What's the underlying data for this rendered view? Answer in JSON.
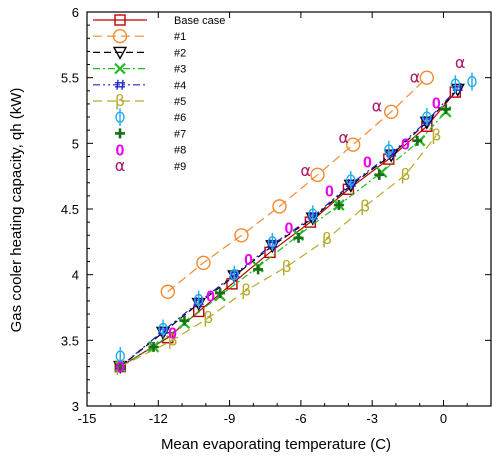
{
  "chart_data": {
    "type": "line",
    "title": "",
    "xlabel": "Mean evaporating temperature (C)",
    "ylabel": "Gas cooler heating capacity, qh (kW)",
    "xlim": [
      -15,
      2
    ],
    "ylim": [
      3,
      6
    ],
    "xticks": [
      -15,
      -12,
      -9,
      -6,
      -3,
      0
    ],
    "yticks": [
      3,
      3.5,
      4,
      4.5,
      5,
      5.5,
      6
    ],
    "xtick_labels": [
      "-15",
      "-12",
      "-9",
      "-6",
      "-3",
      "0"
    ],
    "ytick_labels": [
      "3",
      "3.5",
      "4",
      "4.5",
      "5",
      "5.5",
      "6"
    ],
    "grid": false,
    "legend_position": "top-left",
    "series": [
      {
        "name": "Base case",
        "color": "#c00000",
        "marker": "square",
        "dash": "solid",
        "x": [
          -13.6,
          -11.6,
          -10.3,
          -8.9,
          -7.3,
          -5.6,
          -4.0,
          -2.3,
          -0.7,
          0.5
        ],
        "y": [
          3.3,
          3.52,
          3.72,
          3.93,
          4.17,
          4.4,
          4.65,
          4.88,
          5.13,
          5.39
        ]
      },
      {
        "name": "#1",
        "color": "#f28a30",
        "marker": "circle",
        "dash": "long-dash",
        "x": [
          -11.6,
          -10.1,
          -8.5,
          -6.9,
          -5.3,
          -3.8,
          -2.2,
          -0.7
        ],
        "y": [
          3.87,
          4.09,
          4.3,
          4.52,
          4.76,
          4.99,
          5.24,
          5.5
        ]
      },
      {
        "name": "#2",
        "color": "#000000",
        "marker": "triangle-down",
        "dash": "dash",
        "x": [
          -13.6,
          -11.8,
          -10.3,
          -8.8,
          -7.2,
          -5.5,
          -3.9,
          -2.2,
          -0.7,
          0.6
        ],
        "y": [
          3.3,
          3.56,
          3.78,
          3.99,
          4.22,
          4.43,
          4.68,
          4.91,
          5.16,
          5.41
        ]
      },
      {
        "name": "#3",
        "color": "#22bb22",
        "marker": "x",
        "dash": "dash-dot",
        "x": [
          -13.6,
          -12.2,
          -10.9,
          -9.4,
          -7.8,
          -6.1,
          -4.4,
          -2.6,
          -1.0,
          0.1
        ],
        "y": [
          3.3,
          3.45,
          3.63,
          3.84,
          4.06,
          4.3,
          4.53,
          4.78,
          5.02,
          5.24
        ]
      },
      {
        "name": "#4",
        "color": "#2222cc",
        "marker": "hash",
        "dash": "dash-dot-dot",
        "x": [
          -13.6,
          -11.8,
          -10.3,
          -8.8,
          -7.2,
          -5.5,
          -3.9,
          -2.2,
          -0.7,
          0.6
        ],
        "y": [
          3.3,
          3.57,
          3.79,
          4.0,
          4.23,
          4.44,
          4.69,
          4.92,
          5.17,
          5.42
        ]
      },
      {
        "name": "#5",
        "color": "#b5aa2a",
        "marker": "beta",
        "dash": "long-dash",
        "x": [
          -13.6,
          -11.4,
          -9.9,
          -8.3,
          -6.6,
          -4.9,
          -3.3,
          -1.6,
          -0.3
        ],
        "y": [
          3.3,
          3.5,
          3.67,
          3.88,
          4.06,
          4.27,
          4.52,
          4.76,
          5.06
        ]
      },
      {
        "name": "#6",
        "color": "#22aaee",
        "marker": "phi",
        "dash": "none",
        "x": [
          -13.6,
          -11.8,
          -10.3,
          -8.8,
          -7.2,
          -5.5,
          -3.9,
          -2.3,
          -0.7,
          0.5,
          1.2
        ],
        "y": [
          3.38,
          3.59,
          3.81,
          4.0,
          4.25,
          4.46,
          4.72,
          4.95,
          5.2,
          5.45,
          5.47
        ]
      },
      {
        "name": "#7",
        "color": "#1a6e1a",
        "marker": "plus",
        "dash": "none",
        "x": [
          -13.6,
          -12.2,
          -10.9,
          -9.4,
          -7.8,
          -6.1,
          -4.4,
          -2.7,
          -1.1,
          0.1
        ],
        "y": [
          3.3,
          3.45,
          3.65,
          3.86,
          4.04,
          4.28,
          4.53,
          4.76,
          5.02,
          5.26
        ]
      },
      {
        "name": "#8",
        "color": "#ee00ee",
        "marker": "zero",
        "dash": "none",
        "x": [
          -13.6,
          -11.4,
          -9.8,
          -8.2,
          -6.5,
          -4.8,
          -3.2,
          -1.6,
          -0.3
        ],
        "y": [
          3.3,
          3.56,
          3.84,
          4.12,
          4.36,
          4.64,
          4.86,
          5.0,
          5.31
        ]
      },
      {
        "name": "#9",
        "color": "#aa1a66",
        "marker": "alpha",
        "dash": "none",
        "x": [
          -5.8,
          -4.2,
          -2.8,
          -1.2,
          0.7
        ],
        "y": [
          4.79,
          5.04,
          5.28,
          5.5,
          5.61
        ]
      }
    ]
  }
}
